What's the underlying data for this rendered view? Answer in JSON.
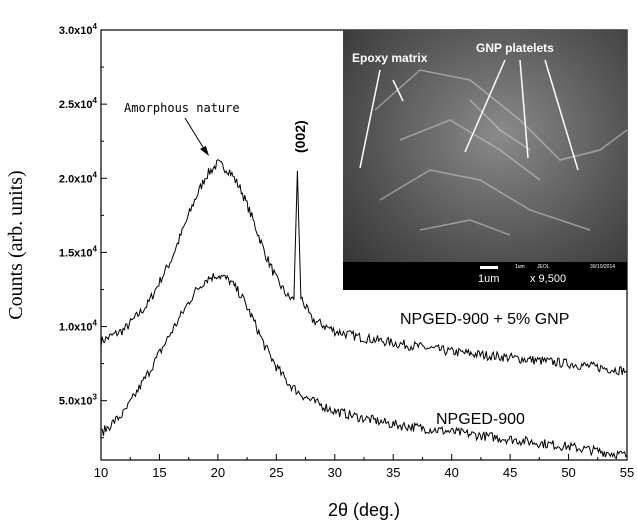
{
  "chart_data": {
    "type": "line",
    "xlabel": "2θ (deg.)",
    "ylabel": "Counts (arb. units)",
    "xlim": [
      10,
      55
    ],
    "ylim": [
      1000,
      30000
    ],
    "x_ticks": [
      10,
      15,
      20,
      25,
      30,
      35,
      40,
      45,
      50,
      55
    ],
    "y_ticks": [
      {
        "value": 5000,
        "base": "5.0x10",
        "exp": "3"
      },
      {
        "value": 10000,
        "base": "1.0x10",
        "exp": "4"
      },
      {
        "value": 15000,
        "base": "1.5x10",
        "exp": "4"
      },
      {
        "value": 20000,
        "base": "2.0x10",
        "exp": "4"
      },
      {
        "value": 25000,
        "base": "2.5x10",
        "exp": "4"
      },
      {
        "value": 30000,
        "base": "3.0x10",
        "exp": "4"
      }
    ],
    "series": [
      {
        "name": "NPGED-900 + 5% GNP",
        "color": "#000000",
        "points": [
          [
            10,
            9000
          ],
          [
            12,
            9800
          ],
          [
            14,
            11500
          ],
          [
            16,
            14500
          ],
          [
            18,
            18500
          ],
          [
            19,
            20200
          ],
          [
            20,
            21000
          ],
          [
            21,
            20500
          ],
          [
            22,
            19200
          ],
          [
            23,
            17200
          ],
          [
            24,
            15000
          ],
          [
            25,
            13200
          ],
          [
            26,
            12000
          ],
          [
            26.5,
            11800
          ],
          [
            26.8,
            20500
          ],
          [
            27.1,
            12000
          ],
          [
            28,
            10500
          ],
          [
            30,
            9700
          ],
          [
            32,
            9300
          ],
          [
            35,
            8900
          ],
          [
            40,
            8300
          ],
          [
            45,
            7900
          ],
          [
            50,
            7500
          ],
          [
            55,
            7000
          ]
        ]
      },
      {
        "name": "NPGED-900",
        "color": "#000000",
        "points": [
          [
            10,
            2800
          ],
          [
            12,
            4200
          ],
          [
            14,
            6800
          ],
          [
            16,
            9600
          ],
          [
            18,
            12300
          ],
          [
            19,
            13200
          ],
          [
            20,
            13500
          ],
          [
            21,
            13100
          ],
          [
            22,
            12100
          ],
          [
            23,
            10500
          ],
          [
            24,
            8700
          ],
          [
            25,
            7300
          ],
          [
            26,
            6200
          ],
          [
            27,
            5500
          ],
          [
            28,
            5000
          ],
          [
            30,
            4300
          ],
          [
            32,
            3900
          ],
          [
            35,
            3400
          ],
          [
            40,
            2900
          ],
          [
            45,
            2400
          ],
          [
            50,
            1900
          ],
          [
            55,
            1300
          ]
        ]
      }
    ],
    "annotations": {
      "amorphous": "Amorphous nature",
      "peak": "(002)"
    },
    "inset": {
      "labels": [
        "Epoxy matrix",
        "GNP platelets"
      ],
      "scalebar": "1um",
      "magnification": "x 9,500",
      "instrument": "JEOL",
      "micro_text": "1um",
      "date": "30/10/2014"
    }
  }
}
